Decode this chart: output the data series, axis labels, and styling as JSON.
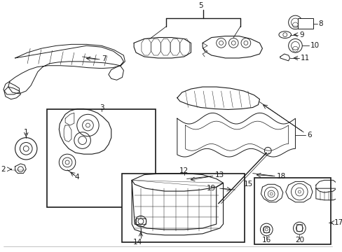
{
  "bg_color": "#ffffff",
  "fig_width": 4.89,
  "fig_height": 3.6,
  "dpi": 100,
  "border_color": "#888888",
  "line_color": "#1a1a1a"
}
